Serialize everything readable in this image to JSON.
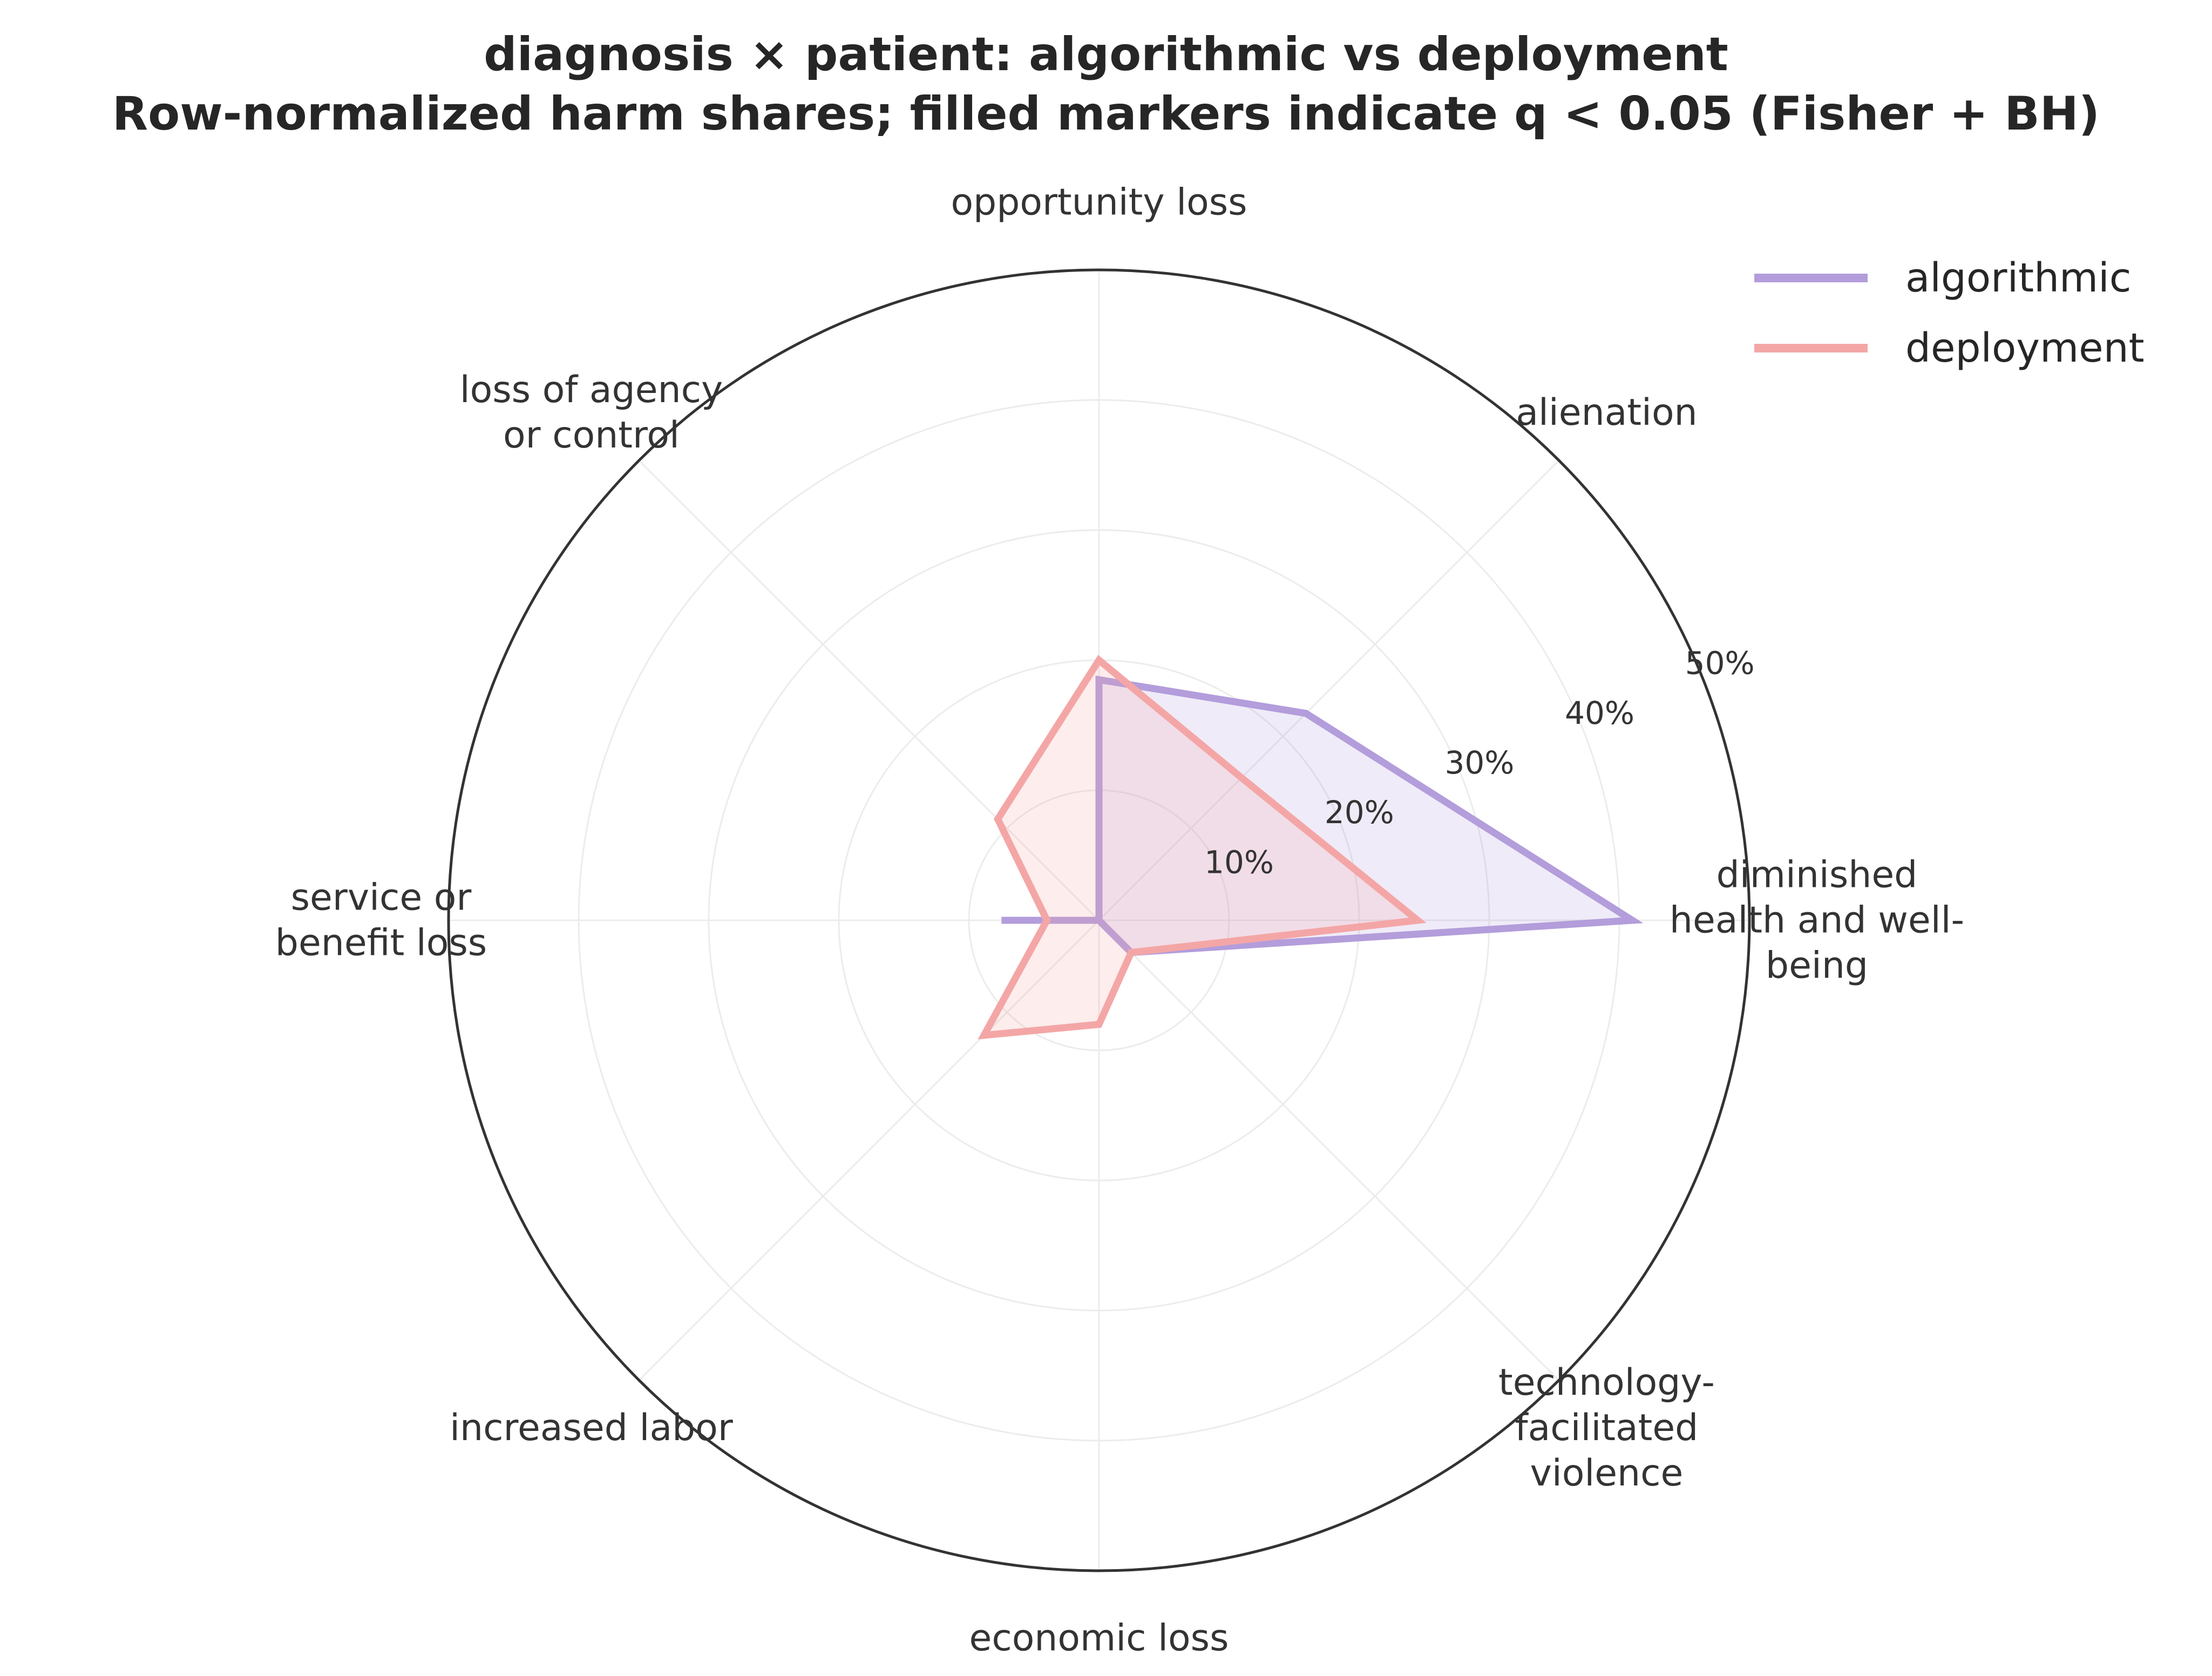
{
  "chart_data": {
    "type": "radar",
    "title_lines": [
      "diagnosis × patient: algorithmic vs deployment",
      "Row-normalized harm shares; filled markers indicate q < 0.05 (Fisher + BH)"
    ],
    "categories": [
      [
        "diminished",
        "health and well-",
        "being"
      ],
      [
        "alienation"
      ],
      [
        "opportunity loss"
      ],
      [
        "loss of agency",
        "or control"
      ],
      [
        "service or",
        "benefit loss"
      ],
      [
        "increased labor"
      ],
      [
        "economic loss"
      ],
      [
        "technology-",
        "facilitated",
        "violence"
      ]
    ],
    "series": [
      {
        "name": "algorithmic",
        "color": "#b39ddb",
        "values": [
          41,
          22.5,
          18.5,
          0,
          7.5,
          0,
          0,
          3.5
        ]
      },
      {
        "name": "deployment",
        "color": "#f4a6a6",
        "values": [
          24.5,
          15.5,
          20,
          11,
          4,
          12.5,
          8,
          3.5
        ]
      }
    ],
    "rlim": [
      0,
      50
    ],
    "rticks": [
      10,
      20,
      30,
      40,
      50
    ],
    "rtick_labels": [
      "10%",
      "20%",
      "30%",
      "40%",
      "50%"
    ],
    "grid": true,
    "legend_position": "top-right",
    "markers_shown": false
  }
}
